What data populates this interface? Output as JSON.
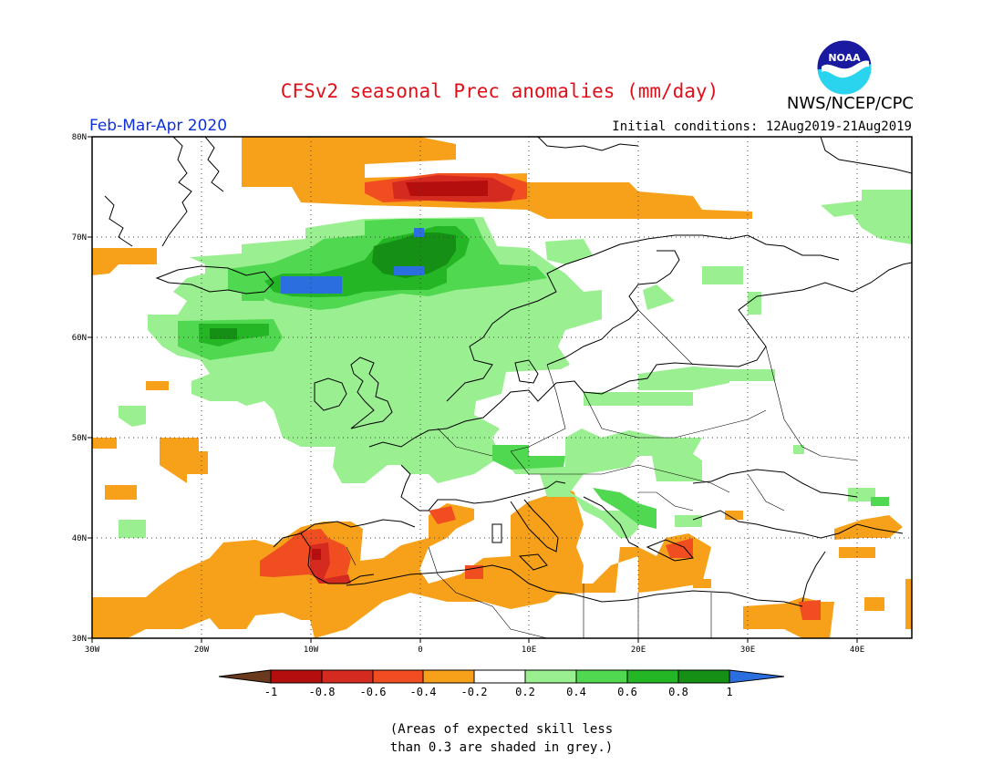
{
  "header": {
    "title": "CFSv2 seasonal Prec anomalies (mm/day)",
    "agency": "NWS/NCEP/CPC",
    "period": "Feb-Mar-Apr 2020",
    "initial_conditions": "Initial conditions: 12Aug2019-21Aug2019",
    "logo_text": "NOAA"
  },
  "map": {
    "lon_ticks": [
      "30W",
      "20W",
      "10W",
      "0",
      "10E",
      "20E",
      "30E",
      "40E"
    ],
    "lat_ticks": [
      "80N",
      "70N",
      "60N",
      "50N",
      "40N",
      "30N"
    ],
    "lon_range": [
      -30,
      45
    ],
    "lat_range": [
      30,
      80
    ],
    "gridlines": "dotted"
  },
  "colorbar": {
    "labels": [
      "-1",
      "-0.8",
      "-0.6",
      "-0.4",
      "-0.2",
      "0.2",
      "0.4",
      "0.6",
      "0.8",
      "1"
    ],
    "colors": {
      "lt_-1": "#6b3a1e",
      "-1_-0.8": "#b40e0e",
      "-0.8_-0.6": "#d52a20",
      "-0.6_-0.4": "#f04e20",
      "-0.4_-0.2": "#f7a11a",
      "-0.2_0.2": "#ffffff",
      "0.2_0.4": "#9af090",
      "0.4_0.6": "#50d850",
      "0.6_0.8": "#24b624",
      "0.8_1": "#159015",
      "gt_1": "#2a6ee0"
    }
  },
  "note": {
    "line1": "(Areas of expected skill less",
    "line2": "than 0.3 are shaded in grey.)"
  }
}
